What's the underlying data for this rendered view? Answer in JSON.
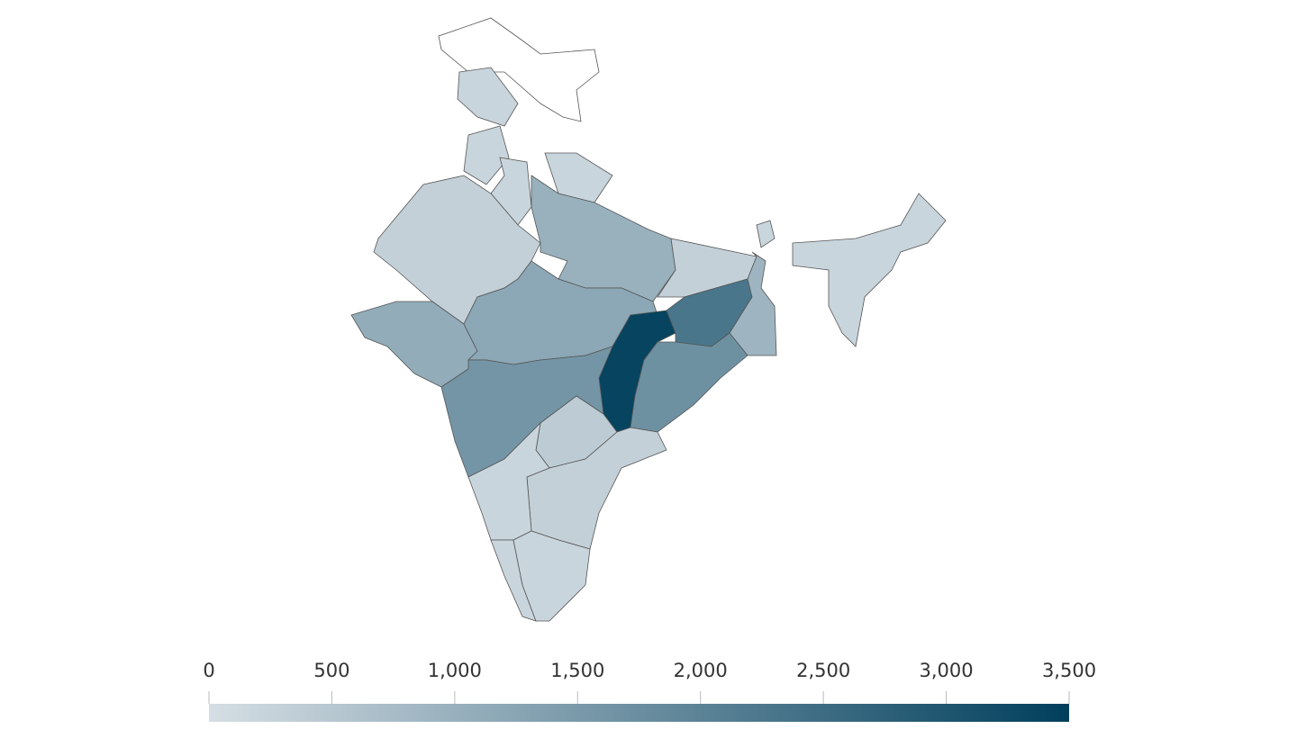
{
  "chart_data": {
    "type": "choropleth",
    "values": [
      null,
      200,
      200,
      200,
      200,
      300,
      1000,
      300,
      1100,
      1200,
      3400,
      2300,
      900,
      1700,
      1600,
      400,
      300,
      200,
      200,
      200,
      200,
      200
    ],
    "colorscale": [
      "#d5dee4",
      "#003f5c"
    ],
    "zlim": [
      0,
      3500
    ],
    "zticks": [
      0,
      500,
      {
        "value": 1000,
        "label": "1,000"
      },
      {
        "value": 1500,
        "label": "1,500"
      },
      {
        "value": 2000,
        "label": "2,000"
      },
      {
        "value": 2500,
        "label": "2,500"
      },
      {
        "value": 3000,
        "label": "3,000"
      },
      {
        "value": 3500,
        "label": "3,500"
      }
    ]
  }
}
